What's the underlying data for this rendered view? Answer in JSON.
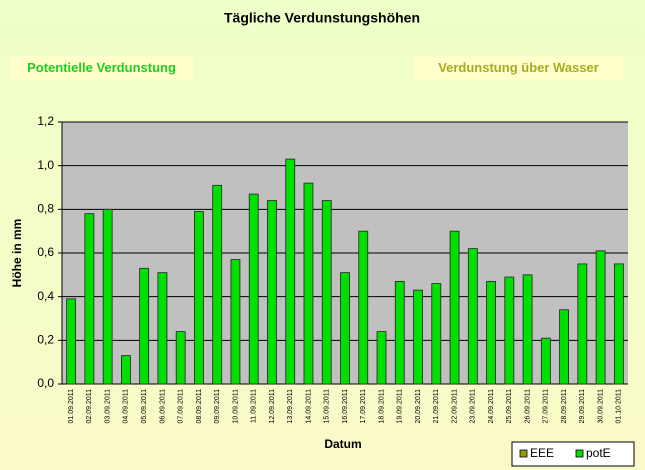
{
  "buttons": [
    "Potentielle Verdunstung",
    "Verdunstung über Wasser"
  ],
  "chart_data": {
    "type": "bar",
    "title": "Tägliche Verdunstungshöhen",
    "y_label": "Höhe in mm",
    "x_label": "Datum",
    "categories": [
      "01.09.2011",
      "02.09.2011",
      "03.09.2011",
      "04.09.2011",
      "05.09.2011",
      "06.09.2011",
      "07.09.2011",
      "08.09.2011",
      "09.09.2011",
      "10.09.2011",
      "11.09.2011",
      "12.09.2011",
      "13.09.2011",
      "14.09.2011",
      "15.09.2011",
      "16.09.2011",
      "17.09.2011",
      "18.09.2011",
      "19.09.2011",
      "20.09.2011",
      "21.09.2011",
      "22.09.2011",
      "23.09.2011",
      "24.09.2011",
      "25.09.2011",
      "26.09.2011",
      "27.09.2011",
      "28.09.2011",
      "29.09.2011",
      "30.09.2011",
      "01.10.2011"
    ],
    "series": [
      {
        "name": "EEE",
        "color": "#999900",
        "values": [
          null,
          null,
          null,
          null,
          null,
          null,
          null,
          null,
          null,
          null,
          null,
          null,
          null,
          null,
          null,
          null,
          null,
          null,
          null,
          null,
          null,
          null,
          null,
          null,
          null,
          null,
          null,
          null,
          null,
          null,
          null
        ]
      },
      {
        "name": "potE",
        "color": "#00e000",
        "values": [
          0.39,
          0.78,
          0.8,
          0.13,
          0.53,
          0.51,
          0.24,
          0.79,
          0.91,
          0.57,
          0.87,
          0.84,
          1.03,
          0.92,
          0.84,
          0.51,
          0.7,
          0.24,
          0.47,
          0.43,
          0.46,
          0.7,
          0.62,
          0.47,
          0.49,
          0.5,
          0.21,
          0.34,
          0.55,
          0.61,
          0.55
        ]
      }
    ],
    "ylim": [
      0,
      1.2
    ],
    "yticks": [
      {
        "value": 0,
        "label": "0,0"
      },
      {
        "value": 0.2,
        "label": "0,2"
      },
      {
        "value": 0.4,
        "label": "0,4"
      },
      {
        "value": 0.6,
        "label": "0,6"
      },
      {
        "value": 0.8,
        "label": "0,8"
      },
      {
        "value": 1.0,
        "label": "1,0"
      },
      {
        "value": 1.2,
        "label": "1,2"
      }
    ],
    "grid": true,
    "legend": "bottom-right"
  }
}
